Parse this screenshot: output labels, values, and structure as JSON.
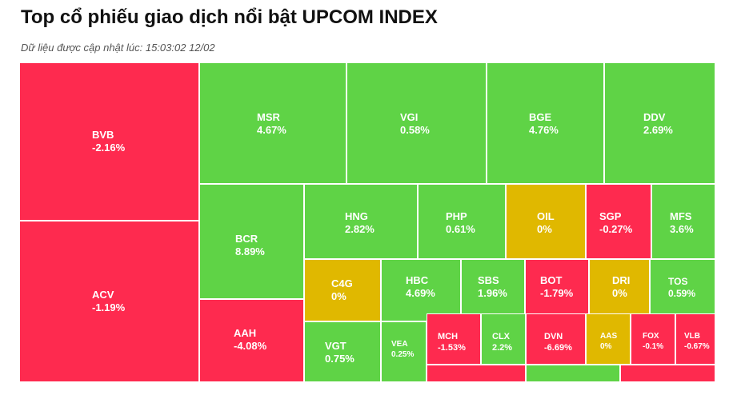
{
  "header": {
    "title": "Top cổ phiếu giao dịch nổi bật UPCOM INDEX",
    "updated": "Dữ liệu được cập nhật lúc: 15:03:02 12/02"
  },
  "colors": {
    "up": "#5fd346",
    "down": "#fe2a4f",
    "flat": "#e0b800"
  },
  "chart_data": {
    "type": "treemap",
    "items": [
      {
        "ticker": "BVB",
        "change": "-2.16%",
        "status": "down"
      },
      {
        "ticker": "ACV",
        "change": "-1.19%",
        "status": "down"
      },
      {
        "ticker": "MSR",
        "change": "4.67%",
        "status": "up"
      },
      {
        "ticker": "VGI",
        "change": "0.58%",
        "status": "up"
      },
      {
        "ticker": "BGE",
        "change": "4.76%",
        "status": "up"
      },
      {
        "ticker": "DDV",
        "change": "2.69%",
        "status": "up"
      },
      {
        "ticker": "BCR",
        "change": "8.89%",
        "status": "up"
      },
      {
        "ticker": "AAH",
        "change": "-4.08%",
        "status": "down"
      },
      {
        "ticker": "HNG",
        "change": "2.82%",
        "status": "up"
      },
      {
        "ticker": "PHP",
        "change": "0.61%",
        "status": "up"
      },
      {
        "ticker": "OIL",
        "change": "0%",
        "status": "flat"
      },
      {
        "ticker": "SGP",
        "change": "-0.27%",
        "status": "down"
      },
      {
        "ticker": "MFS",
        "change": "3.6%",
        "status": "up"
      },
      {
        "ticker": "C4G",
        "change": "0%",
        "status": "flat"
      },
      {
        "ticker": "HBC",
        "change": "4.69%",
        "status": "up"
      },
      {
        "ticker": "SBS",
        "change": "1.96%",
        "status": "up"
      },
      {
        "ticker": "BOT",
        "change": "-1.79%",
        "status": "down"
      },
      {
        "ticker": "DRI",
        "change": "0%",
        "status": "flat"
      },
      {
        "ticker": "TOS",
        "change": "0.59%",
        "status": "up"
      },
      {
        "ticker": "VGT",
        "change": "0.75%",
        "status": "up"
      },
      {
        "ticker": "VEA",
        "change": "0.25%",
        "status": "up"
      },
      {
        "ticker": "MCH",
        "change": "-1.53%",
        "status": "down"
      },
      {
        "ticker": "CLX",
        "change": "2.2%",
        "status": "up"
      },
      {
        "ticker": "DVN",
        "change": "-6.69%",
        "status": "down"
      },
      {
        "ticker": "AAS",
        "change": "0%",
        "status": "flat"
      },
      {
        "ticker": "FOX",
        "change": "-0.1%",
        "status": "down"
      },
      {
        "ticker": "VLB",
        "change": "-0.67%",
        "status": "down"
      },
      {
        "ticker": "",
        "change": "",
        "status": "down"
      },
      {
        "ticker": "",
        "change": "",
        "status": "up"
      },
      {
        "ticker": "",
        "change": "",
        "status": "down"
      }
    ]
  }
}
